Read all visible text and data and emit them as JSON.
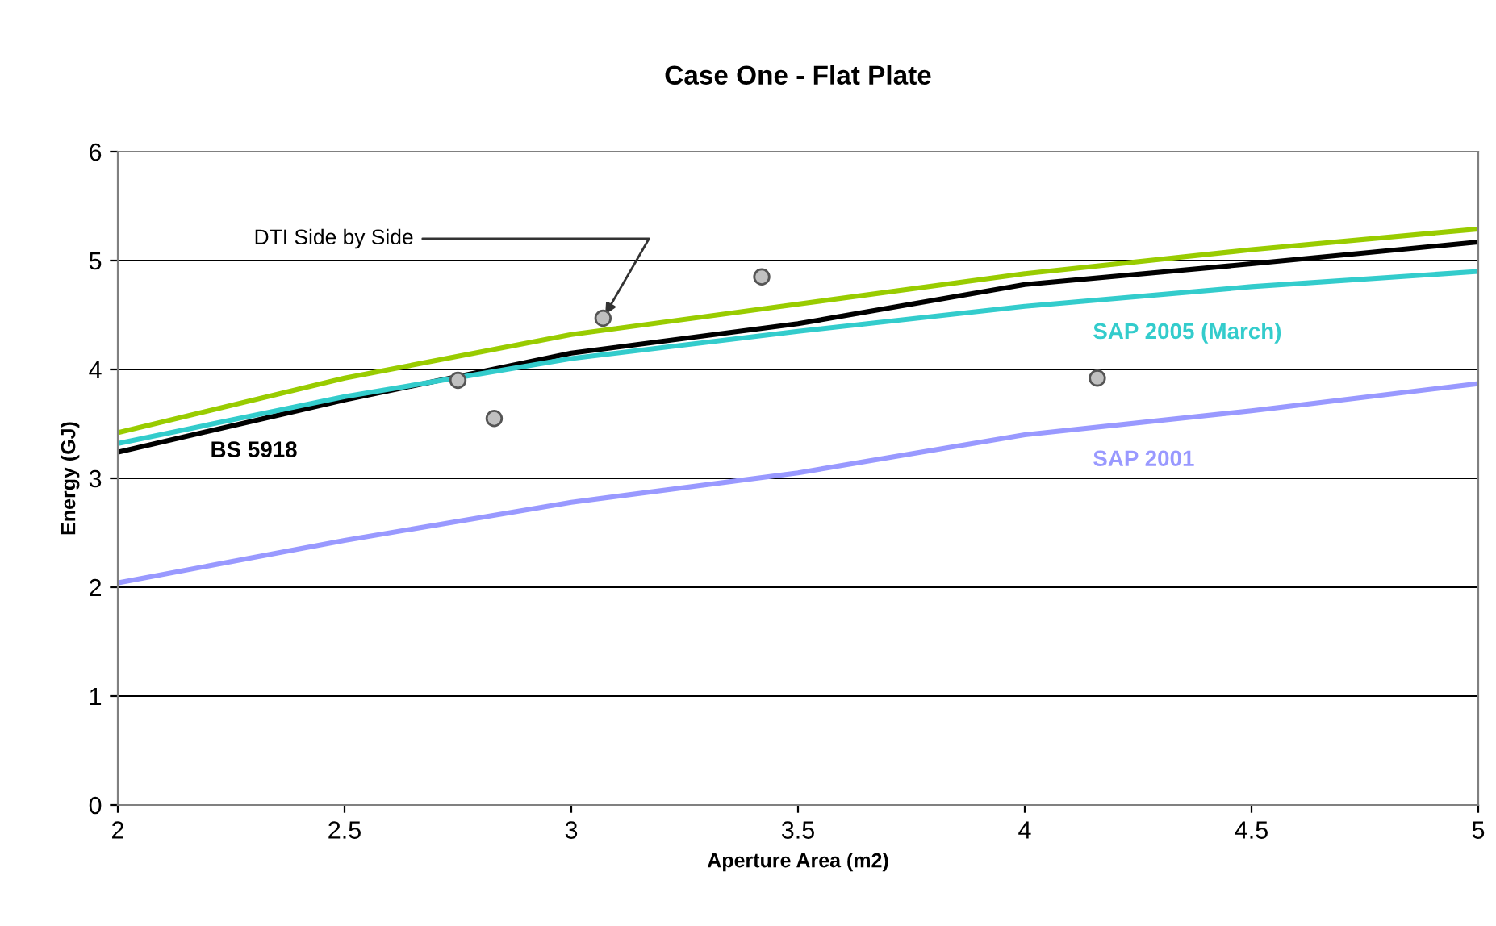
{
  "chart_data": {
    "type": "line",
    "title": "Case One - Flat Plate",
    "xlabel": "Aperture Area (m2)",
    "ylabel": "Energy (GJ)",
    "xlim": [
      2,
      5
    ],
    "xticks": [
      2,
      2.5,
      3,
      3.5,
      4,
      4.5,
      5
    ],
    "ylim": [
      0,
      6
    ],
    "yticks": [
      0,
      1,
      2,
      3,
      4,
      5,
      6
    ],
    "grid": "y",
    "legend": false,
    "marker": "none",
    "series": [
      {
        "color": "#99cc00",
        "x": [
          2,
          2.5,
          3,
          3.5,
          4,
          4.5,
          5
        ],
        "values": [
          3.42,
          3.92,
          4.32,
          4.6,
          4.88,
          5.1,
          5.29
        ]
      },
      {
        "name": "BS 5918",
        "color": "#000000",
        "x": [
          2,
          2.5,
          3,
          3.5,
          4,
          4.5,
          5
        ],
        "values": [
          3.24,
          3.72,
          4.15,
          4.42,
          4.78,
          4.97,
          5.17
        ]
      },
      {
        "name": "SAP 2005 (March)",
        "color": "#33cccc",
        "x": [
          2,
          2.5,
          3,
          3.5,
          4,
          4.5,
          5
        ],
        "values": [
          3.32,
          3.75,
          4.1,
          4.35,
          4.58,
          4.76,
          4.9
        ]
      },
      {
        "name": "SAP 2001",
        "color": "#9999ff",
        "x": [
          2,
          2.5,
          3,
          3.5,
          4,
          4.5,
          5
        ],
        "values": [
          2.04,
          2.43,
          2.78,
          3.05,
          3.4,
          3.62,
          3.87
        ]
      },
      {
        "type": "scatter",
        "marker": "circle",
        "color": "#c0c0c0",
        "x": [
          2.75,
          2.83,
          3.07,
          3.42,
          4.16
        ],
        "values": [
          3.9,
          3.55,
          4.47,
          4.85,
          3.92
        ]
      }
    ],
    "annotations": [
      {
        "text": "DTI Side by Side",
        "x": 3.07,
        "y": 4.47
      }
    ]
  }
}
